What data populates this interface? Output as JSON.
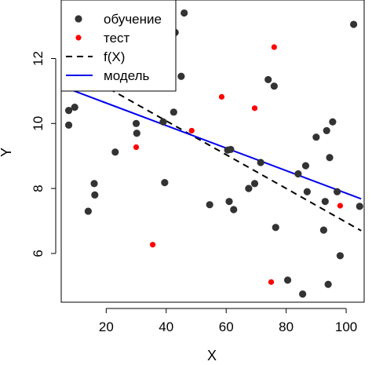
{
  "chart_data": {
    "type": "scatter",
    "title": "",
    "xlabel": "X",
    "ylabel": "Y",
    "xlim": [
      5,
      106
    ],
    "ylim": [
      4.5,
      13.8
    ],
    "xticks": [
      20,
      40,
      60,
      80,
      100
    ],
    "yticks": [
      6,
      8,
      10,
      12
    ],
    "grid": false,
    "legend_position": "top-left",
    "legend": [
      {
        "label": "обучение",
        "kind": "point",
        "color": "#333333"
      },
      {
        "label": "тест",
        "kind": "point",
        "color": "#ff0000"
      },
      {
        "label": "f(X)",
        "kind": "dashed-line",
        "color": "#000000"
      },
      {
        "label": "модель",
        "kind": "line",
        "color": "#0000ee"
      }
    ],
    "series": [
      {
        "name": "обучение",
        "color": "#333333",
        "points": [
          [
            7.5,
            10.4
          ],
          [
            7.5,
            9.95
          ],
          [
            9.5,
            10.5
          ],
          [
            14,
            7.3
          ],
          [
            16,
            8.15
          ],
          [
            16.2,
            7.8
          ],
          [
            23,
            9.12
          ],
          [
            30,
            10.0
          ],
          [
            30.2,
            9.7
          ],
          [
            39,
            10.05
          ],
          [
            39.5,
            8.18
          ],
          [
            41,
            12.85
          ],
          [
            42.5,
            10.35
          ],
          [
            43,
            12.8
          ],
          [
            45,
            11.45
          ],
          [
            46,
            13.4
          ],
          [
            54.5,
            7.5
          ],
          [
            60.5,
            9.18
          ],
          [
            61,
            7.6
          ],
          [
            61.5,
            9.2
          ],
          [
            62.5,
            7.35
          ],
          [
            67.5,
            8.0
          ],
          [
            69.5,
            8.15
          ],
          [
            71.5,
            8.8
          ],
          [
            74,
            11.35
          ],
          [
            76,
            11.15
          ],
          [
            76.5,
            6.8
          ],
          [
            80.5,
            5.18
          ],
          [
            84,
            8.45
          ],
          [
            85.5,
            4.75
          ],
          [
            86.5,
            8.7
          ],
          [
            87,
            7.9
          ],
          [
            90,
            9.58
          ],
          [
            92.5,
            6.72
          ],
          [
            93,
            7.6
          ],
          [
            93.5,
            9.78
          ],
          [
            94,
            5.05
          ],
          [
            94.5,
            8.95
          ],
          [
            95.5,
            10.05
          ],
          [
            97,
            7.9
          ],
          [
            98,
            5.93
          ],
          [
            102.5,
            13.05
          ],
          [
            104.5,
            7.45
          ]
        ]
      },
      {
        "name": "тест",
        "color": "#ff0000",
        "points": [
          [
            30,
            9.27
          ],
          [
            35.5,
            6.27
          ],
          [
            48.5,
            9.78
          ],
          [
            58.5,
            10.82
          ],
          [
            69.5,
            10.47
          ],
          [
            75,
            5.12
          ],
          [
            76,
            12.35
          ],
          [
            98,
            7.47
          ]
        ]
      }
    ],
    "lines": [
      {
        "name": "f(X)",
        "style": "dashed",
        "color": "#000000",
        "x": [
          5,
          105
        ],
        "y": [
          11.9,
          6.7
        ]
      },
      {
        "name": "модель",
        "style": "solid",
        "color": "#0000ee",
        "x": [
          5,
          105
        ],
        "y": [
          11.15,
          7.68
        ]
      }
    ]
  }
}
